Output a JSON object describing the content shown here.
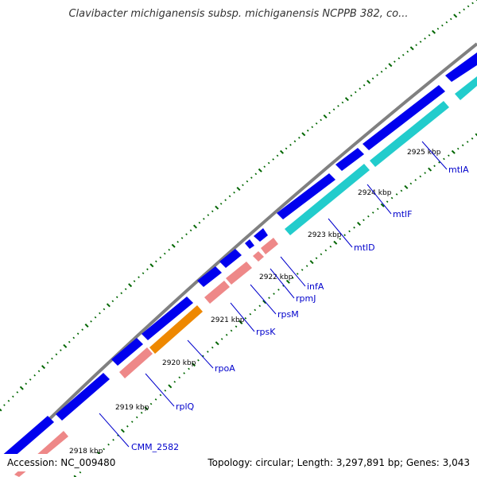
{
  "title": "Clavibacter michiganensis subsp. michiganensis NCPPB 382, co...",
  "footer": {
    "accession": "Accession: NC_009480",
    "topology": "Topology: circular; Length: 3,297,891 bp; Genes: 3,043"
  },
  "colors": {
    "backbone": "#808080",
    "forward_gene": "#0000ee",
    "reverse_gene": "#ee8888",
    "mtl_gene": "#22cccc",
    "rpoA_gene": "#ee8800",
    "label": "#0000cc",
    "tick": "#006600"
  },
  "tick_labels": [
    "2918 kbp",
    "2919 kbp",
    "2920 kbp",
    "2921 kbp",
    "2922 kbp",
    "2923 kbp",
    "2924 kbp",
    "2925 kbp"
  ],
  "gene_labels": [
    "CMM_2582",
    "rplQ",
    "rpoA",
    "rpsK",
    "rpsM",
    "rpmJ",
    "infA",
    "mtlD",
    "mtlF",
    "mtlA"
  ]
}
